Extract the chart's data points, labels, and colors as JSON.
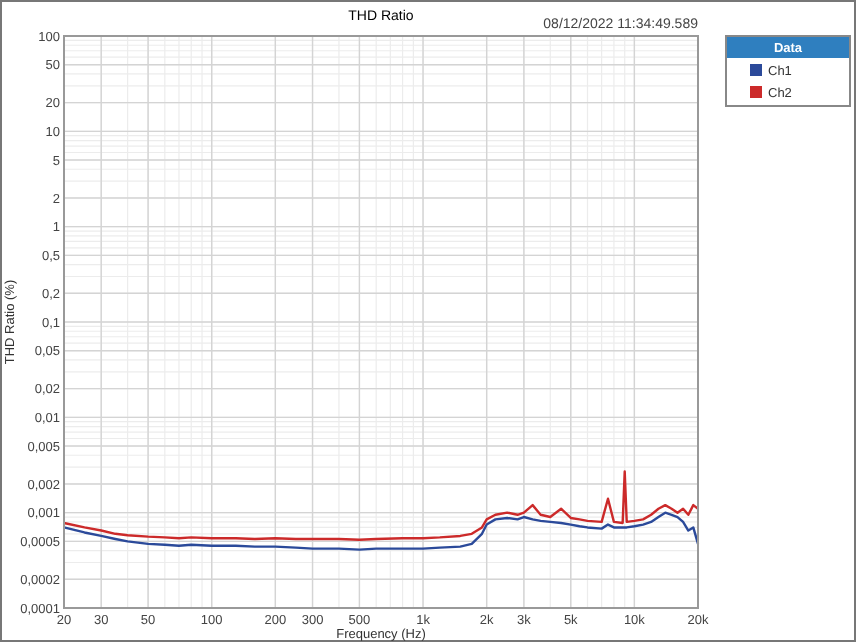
{
  "chart_data": {
    "type": "line",
    "title": "THD Ratio",
    "xlabel": "Frequency (Hz)",
    "ylabel": "THD Ratio (%)",
    "legend_title": "Data",
    "legend": "right",
    "grid": true,
    "log": "xy",
    "line_style": "solid",
    "annotations": [
      "08/12/2022 11:34:49.589"
    ],
    "x": [
      20,
      25,
      30,
      35,
      40,
      50,
      60,
      70,
      80,
      100,
      130,
      160,
      200,
      250,
      300,
      400,
      500,
      600,
      800,
      1000,
      1200,
      1500,
      1700,
      1900,
      2000,
      2200,
      2500,
      2800,
      3000,
      3300,
      3600,
      4000,
      4500,
      5000,
      5500,
      6000,
      7000,
      7500,
      8000,
      8800,
      9000,
      9200,
      10000,
      11000,
      12000,
      13000,
      14000,
      15000,
      16000,
      17000,
      18000,
      19000,
      20000
    ],
    "series": [
      {
        "name": "Ch1",
        "color": "#2b4a9a",
        "values": [
          0.0007,
          0.00062,
          0.00057,
          0.00053,
          0.0005,
          0.00047,
          0.00046,
          0.00045,
          0.00046,
          0.00045,
          0.00045,
          0.00044,
          0.00044,
          0.00043,
          0.00042,
          0.00042,
          0.00041,
          0.00042,
          0.00042,
          0.00042,
          0.00043,
          0.00044,
          0.00047,
          0.0006,
          0.00075,
          0.00085,
          0.00088,
          0.00085,
          0.0009,
          0.00085,
          0.00082,
          0.0008,
          0.00078,
          0.00075,
          0.00072,
          0.0007,
          0.00068,
          0.00075,
          0.0007,
          0.0007,
          0.0007,
          0.0007,
          0.00072,
          0.00075,
          0.0008,
          0.0009,
          0.001,
          0.00095,
          0.0009,
          0.0008,
          0.00065,
          0.0007,
          0.00047
        ]
      },
      {
        "name": "Ch2",
        "color": "#cc2a2a",
        "values": [
          0.00078,
          0.0007,
          0.00065,
          0.0006,
          0.00058,
          0.00056,
          0.00055,
          0.00054,
          0.00055,
          0.00054,
          0.00054,
          0.00053,
          0.00054,
          0.00053,
          0.00053,
          0.00053,
          0.00052,
          0.00053,
          0.00054,
          0.00054,
          0.00055,
          0.00057,
          0.0006,
          0.0007,
          0.00085,
          0.00095,
          0.001,
          0.00095,
          0.001,
          0.0012,
          0.00095,
          0.0009,
          0.0011,
          0.00088,
          0.00085,
          0.00082,
          0.0008,
          0.0014,
          0.0008,
          0.00078,
          0.0027,
          0.0008,
          0.00082,
          0.00085,
          0.00095,
          0.0011,
          0.0012,
          0.0011,
          0.001,
          0.0011,
          0.00095,
          0.0012,
          0.0011
        ]
      }
    ],
    "xlim": [
      20,
      20000
    ],
    "ylim": [
      0.0001,
      100
    ],
    "xticks": [
      20,
      30,
      50,
      100,
      200,
      300,
      500,
      {
        "value": 1000,
        "label": "1k"
      },
      {
        "value": 2000,
        "label": "2k"
      },
      {
        "value": 3000,
        "label": "3k"
      },
      {
        "value": 5000,
        "label": "5k"
      },
      {
        "value": 10000,
        "label": "10k"
      },
      {
        "value": 20000,
        "label": "20k"
      }
    ],
    "yticks": [
      {
        "value": 0.0001,
        "label": "0,0001"
      },
      {
        "value": 0.0002,
        "label": "0,0002"
      },
      {
        "value": 0.0005,
        "label": "0,0005"
      },
      {
        "value": 0.001,
        "label": "0,001"
      },
      {
        "value": 0.002,
        "label": "0,002"
      },
      {
        "value": 0.005,
        "label": "0,005"
      },
      {
        "value": 0.01,
        "label": "0,01"
      },
      {
        "value": 0.02,
        "label": "0,02"
      },
      {
        "value": 0.05,
        "label": "0,05"
      },
      {
        "value": 0.1,
        "label": "0,1"
      },
      {
        "value": 0.2,
        "label": "0,2"
      },
      {
        "value": 0.5,
        "label": "0,5"
      },
      1,
      2,
      5,
      10,
      20,
      50,
      100
    ]
  }
}
